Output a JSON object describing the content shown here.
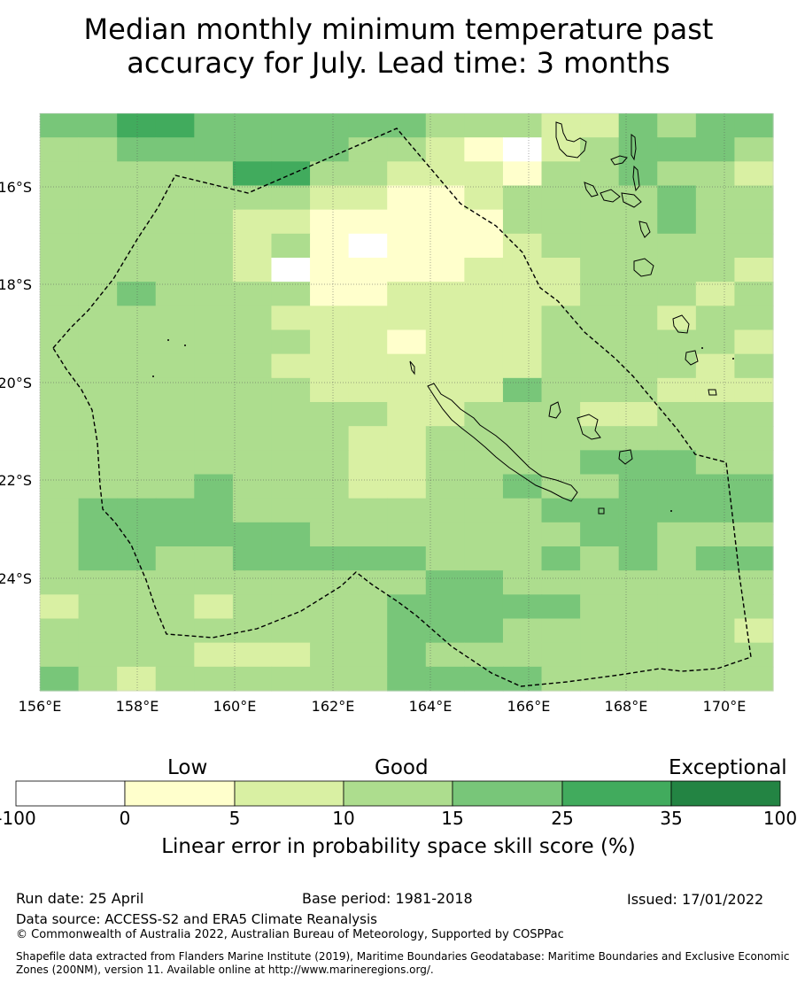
{
  "title": {
    "line1": "Median monthly minimum temperature past",
    "line2": "accuracy for July. Lead time: 3 months"
  },
  "map": {
    "lon_labels": [
      "156°E",
      "158°E",
      "160°E",
      "162°E",
      "164°E",
      "166°E",
      "168°E",
      "170°E"
    ],
    "lat_labels": [
      "16°S",
      "18°S",
      "20°S",
      "22°S",
      "24°S"
    ],
    "grid": "dotted",
    "cell_classes": [
      "4455444444333224344",
      "3344444433210234443",
      "3333355332221334332",
      "3333333221123333433",
      "3333322111113333433",
      "3333323101112333333",
      "3333320111122233332",
      "3343333112222233323",
      "3333332222222333233",
      "3333333221222333332",
      "3333332222222333323",
      "3333333222224333222",
      "3333333332233322333",
      "3333333322333333333",
      "3333333322333344433",
      "3333433322334334444",
      "3444433333333444444",
      "3444444333333344333",
      "3443344444333434344",
      "3333333333443333333",
      "2333233334444433333",
      "3333333334443333332",
      "3333222334333333333",
      "4323333334444333333"
    ]
  },
  "legend": {
    "categories": [
      "Low",
      "Good",
      "Exceptional"
    ],
    "ticks": [
      "-100",
      "0",
      "5",
      "10",
      "15",
      "25",
      "35",
      "100"
    ],
    "colors": [
      "#ffffff",
      "#ffffcc",
      "#d9f0a3",
      "#addd8e",
      "#78c679",
      "#41ab5d",
      "#238443"
    ],
    "title": "Linear error in probability space skill score (%)"
  },
  "footer": {
    "run_date": "Run date: 25 April",
    "base_period": "Base period: 1981-2018",
    "issued": "Issued: 17/01/2022",
    "data_source": "Data source: ACCESS-S2 and ERA5 Climate Reanalysis",
    "copyright": "© Commonwealth of Australia 2022, Australian Bureau of Meteorology, Supported by COSPPac",
    "shapefile": "Shapefile data extracted from Flanders Marine Institute (2019), Maritime Boundaries Geodatabase: Maritime Boundaries and Exclusive Economic Zones (200NM), version 11. Available online at http://www.marineregions.org/."
  }
}
